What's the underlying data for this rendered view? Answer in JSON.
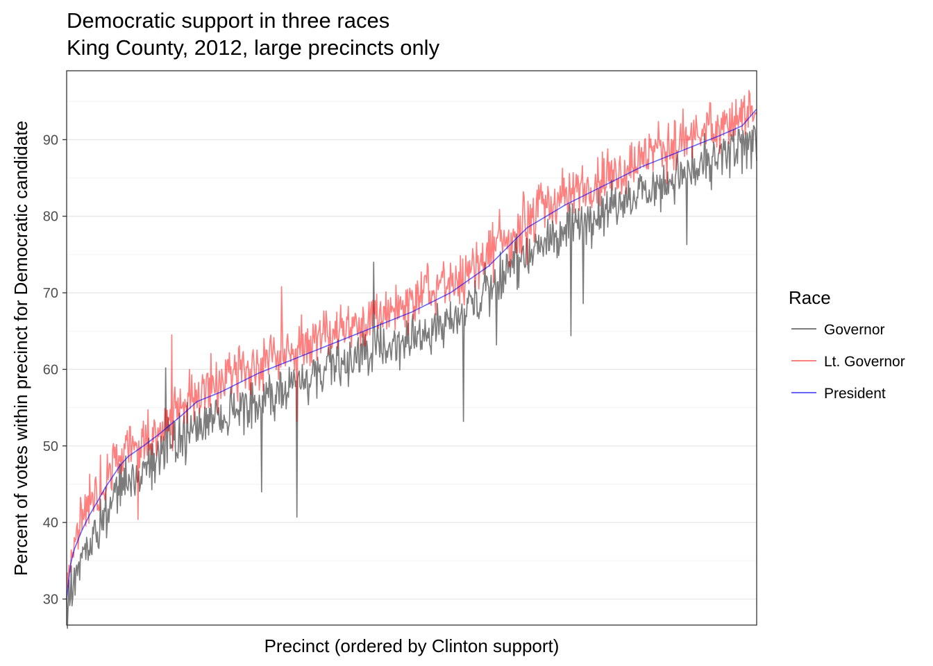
{
  "chart_data": {
    "type": "line",
    "title_lines": [
      "Democratic support in three races",
      "King County, 2012, large precincts only"
    ],
    "xlabel": "Precinct (ordered by Clinton support)",
    "ylabel": "Percent of votes within precinct for Democratic candidate",
    "ylim": [
      26.6,
      99.0
    ],
    "y_ticks": [
      30,
      40,
      50,
      60,
      70,
      80,
      90
    ],
    "y_tick_labels": [
      "30",
      "40",
      "50",
      "60",
      "70",
      "80",
      "90"
    ],
    "grid": true,
    "legend": {
      "title": "Race",
      "position": "right"
    },
    "series_meta": [
      {
        "name": "Governor",
        "color": "#444444",
        "opacity": 0.7
      },
      {
        "name": "Lt. Governor",
        "color": "#ff0000",
        "opacity": 0.5
      },
      {
        "name": "President",
        "color": "#0000ff",
        "opacity": 0.6
      }
    ],
    "precinct_count": 900,
    "president_trend": {
      "x": [
        0,
        5,
        10,
        20,
        30,
        40,
        50,
        60,
        70,
        80,
        100,
        120,
        150,
        170,
        200,
        250,
        300,
        350,
        400,
        450,
        500,
        550,
        600,
        650,
        700,
        750,
        800,
        850,
        880,
        899
      ],
      "y": [
        30.0,
        34.5,
        36.5,
        39.0,
        41.0,
        42.7,
        44.5,
        46.0,
        47.5,
        48.6,
        50.0,
        51.5,
        54.0,
        55.8,
        57.0,
        59.5,
        61.5,
        63.5,
        65.5,
        67.5,
        70.0,
        73.5,
        78.5,
        81.5,
        84.0,
        86.5,
        88.5,
        90.5,
        91.8,
        94.0
      ]
    },
    "governor_offset_mean": -3.2,
    "governor_offset_spread": 2.4,
    "ltgov_offset_mean": 1.2,
    "ltgov_offset_spread": 2.6,
    "governor_outliers": [
      {
        "x": 300,
        "y": 40.7
      },
      {
        "x": 400,
        "y": 74.0
      },
      {
        "x": 517,
        "y": 53.2
      },
      {
        "x": 657,
        "y": 64.4
      },
      {
        "x": 673,
        "y": 68.6
      },
      {
        "x": 808,
        "y": 76.3
      },
      {
        "x": 129,
        "y": 60.2
      },
      {
        "x": 254,
        "y": 44.0
      },
      {
        "x": 560,
        "y": 63.2
      }
    ],
    "ltgov_outliers": [
      {
        "x": 93,
        "y": 40.4
      },
      {
        "x": 280,
        "y": 70.8
      },
      {
        "x": 300,
        "y": 53.2
      },
      {
        "x": 137,
        "y": 64.5
      },
      {
        "x": 600,
        "y": 73.7
      },
      {
        "x": 890,
        "y": 96.0
      }
    ]
  }
}
